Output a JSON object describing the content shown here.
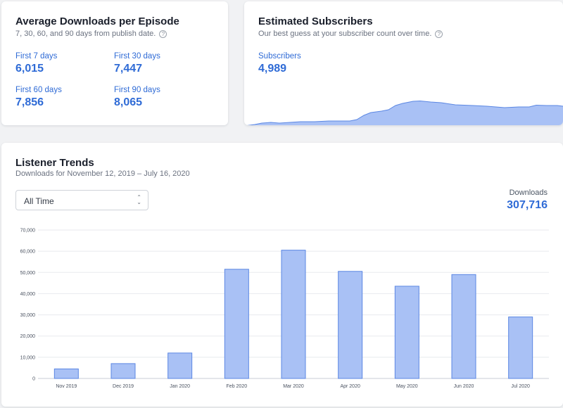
{
  "avg_downloads": {
    "title": "Average Downloads per Episode",
    "subtitle": "7, 30, 60, and 90 days from publish date.",
    "help_icon": "?",
    "metrics": [
      {
        "label": "First 7 days",
        "value": "6,015"
      },
      {
        "label": "First 30 days",
        "value": "7,447"
      },
      {
        "label": "First 60 days",
        "value": "7,856"
      },
      {
        "label": "First 90 days",
        "value": "8,065"
      }
    ]
  },
  "subscribers": {
    "title": "Estimated Subscribers",
    "subtitle": "Our best guess at your subscriber count over time.",
    "help_icon": "?",
    "label": "Subscribers",
    "value": "4,989",
    "fill_color": "#a9c1f5",
    "stroke_color": "#5b87e3"
  },
  "trends": {
    "title": "Listener Trends",
    "subtitle": "Downloads for November 12, 2019 – July 16, 2020",
    "range_select": {
      "selected": "All Time",
      "chevron_up": "⌃",
      "chevron_down": "⌄"
    },
    "downloads_label": "Downloads",
    "downloads_value": "307,716"
  },
  "chart_data": {
    "type": "bar",
    "title": "",
    "categories": [
      "Nov 2019",
      "Dec 2019",
      "Jan 2020",
      "Feb 2020",
      "Mar 2020",
      "Apr 2020",
      "May 2020",
      "Jun 2020",
      "Jul 2020"
    ],
    "values": [
      4500,
      7000,
      12000,
      51500,
      60500,
      50500,
      43500,
      49000,
      29000
    ],
    "ylim": [
      0,
      70000
    ],
    "yticks": [
      0,
      10000,
      20000,
      30000,
      40000,
      50000,
      60000,
      70000
    ],
    "ytick_labels": [
      "0",
      "10,000",
      "20,000",
      "30,000",
      "40,000",
      "50,000",
      "60,000",
      "70,000"
    ],
    "grid": true,
    "bar_color": "#a9c1f5",
    "bar_stroke": "#5b87e3"
  }
}
